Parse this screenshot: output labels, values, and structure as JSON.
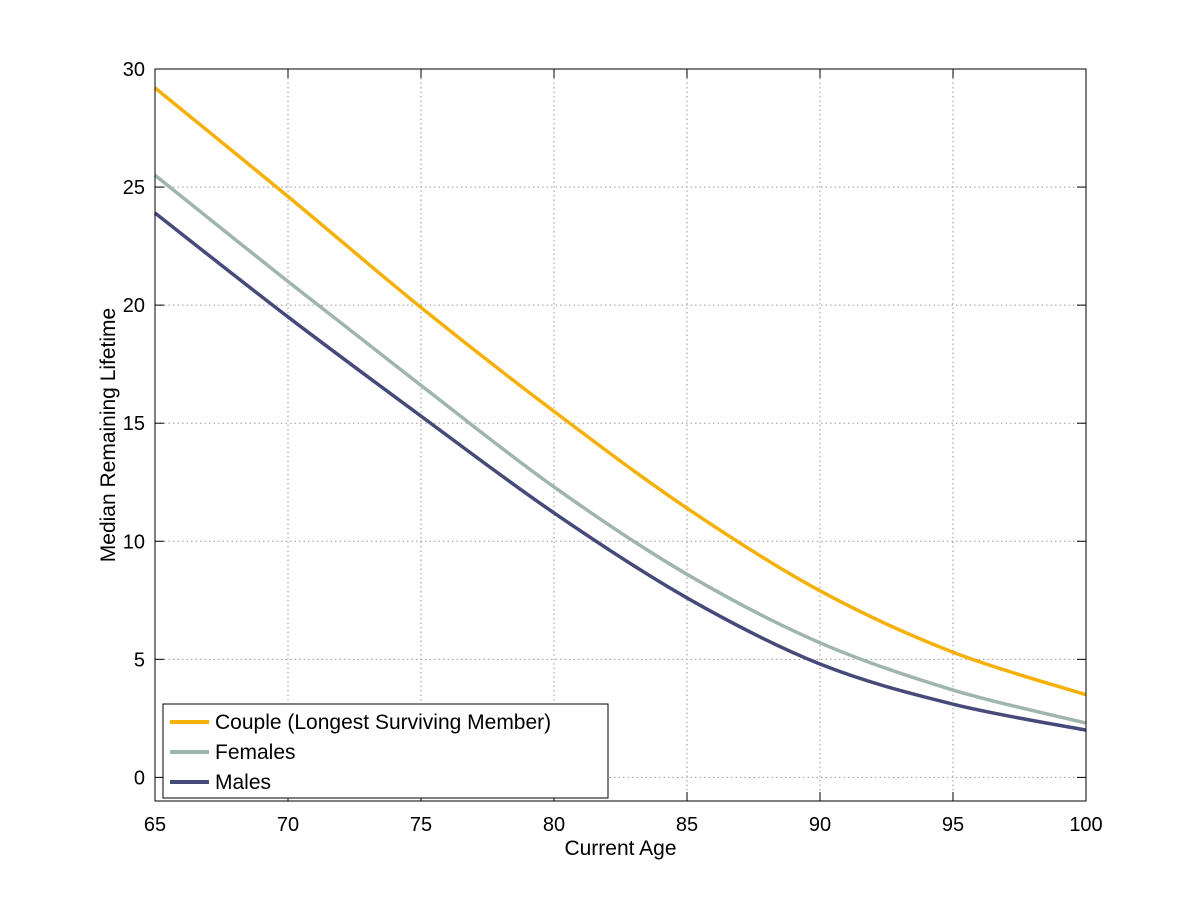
{
  "chart_data": {
    "type": "line",
    "title": "",
    "xlabel": "Current Age",
    "ylabel": "Median Remaining Lifetime",
    "xlim": [
      65,
      100
    ],
    "ylim": [
      -1,
      30
    ],
    "x_ticks": [
      65,
      70,
      75,
      80,
      85,
      90,
      95,
      100
    ],
    "y_ticks": [
      0,
      5,
      10,
      15,
      20,
      25,
      30
    ],
    "grid": true,
    "legend_position": "bottom-left",
    "x": [
      65,
      70,
      75,
      80,
      85,
      90,
      95,
      100
    ],
    "series": [
      {
        "name": "Couple (Longest Surviving Member)",
        "color": "#f5b10a",
        "values": [
          29.2,
          24.6,
          19.9,
          15.5,
          11.4,
          7.9,
          5.3,
          3.5
        ]
      },
      {
        "name": "Females",
        "color": "#9fb5ae",
        "values": [
          25.5,
          21.0,
          16.6,
          12.3,
          8.6,
          5.7,
          3.7,
          2.3
        ]
      },
      {
        "name": "Males",
        "color": "#454a78",
        "values": [
          23.9,
          19.5,
          15.3,
          11.2,
          7.6,
          4.8,
          3.1,
          2.0
        ]
      }
    ]
  }
}
